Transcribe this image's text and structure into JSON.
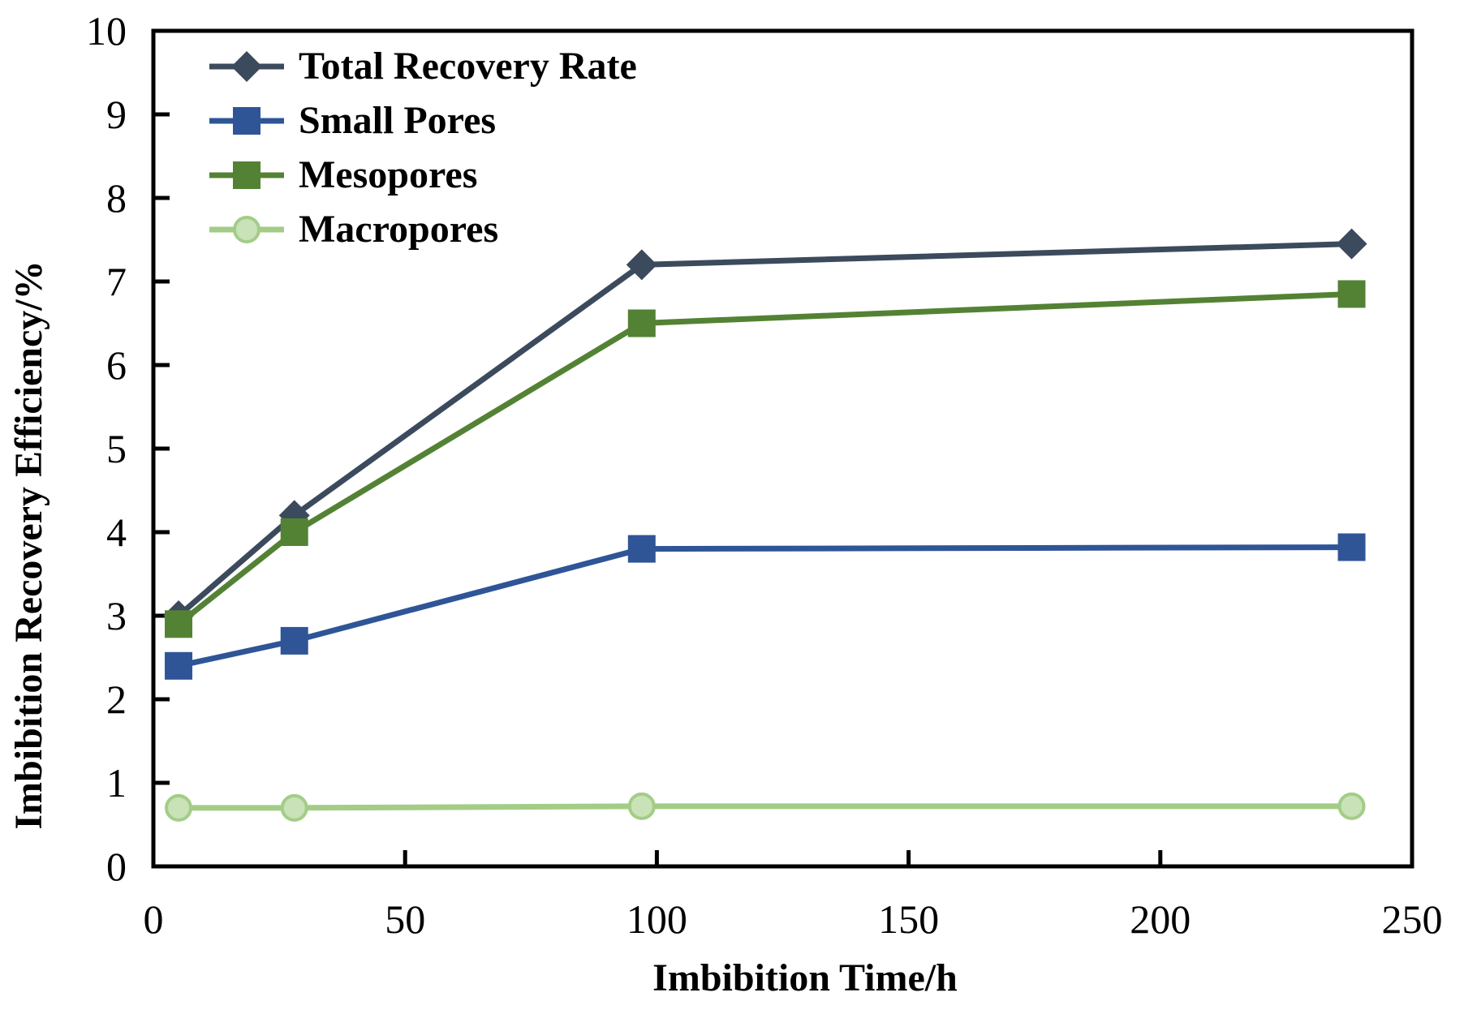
{
  "chart_data": {
    "type": "line",
    "title": "",
    "xlabel": "Imbibition Time/h",
    "ylabel": "Imbibition Recovery Efficiency/%",
    "xlim": [
      0,
      250
    ],
    "ylim": [
      0,
      10
    ],
    "x_ticks": [
      0,
      50,
      100,
      150,
      200,
      250
    ],
    "y_ticks": [
      0,
      1,
      2,
      3,
      4,
      5,
      6,
      7,
      8,
      9,
      10
    ],
    "grid": false,
    "legend_position": "top-left-inside",
    "background": "#ffffff",
    "axis_color": "#000000",
    "x": [
      5,
      28,
      97,
      238
    ],
    "series": [
      {
        "name": "Total Recovery Rate",
        "marker": "diamond",
        "color": "#3b4a5c",
        "marker_fill": "#3b4a5c",
        "values": [
          3.0,
          4.2,
          7.2,
          7.45
        ]
      },
      {
        "name": "Small Pores",
        "marker": "square",
        "color": "#2f5597",
        "marker_fill": "#2f5597",
        "values": [
          2.4,
          2.7,
          3.8,
          3.82
        ]
      },
      {
        "name": "Mesopores",
        "marker": "square",
        "color": "#548235",
        "marker_fill": "#548235",
        "values": [
          2.9,
          4.0,
          6.5,
          6.85
        ]
      },
      {
        "name": "Macropores",
        "marker": "circle",
        "color": "#a3cd87",
        "marker_fill": "#c9e2b8",
        "values": [
          0.7,
          0.7,
          0.72,
          0.72
        ]
      }
    ]
  }
}
